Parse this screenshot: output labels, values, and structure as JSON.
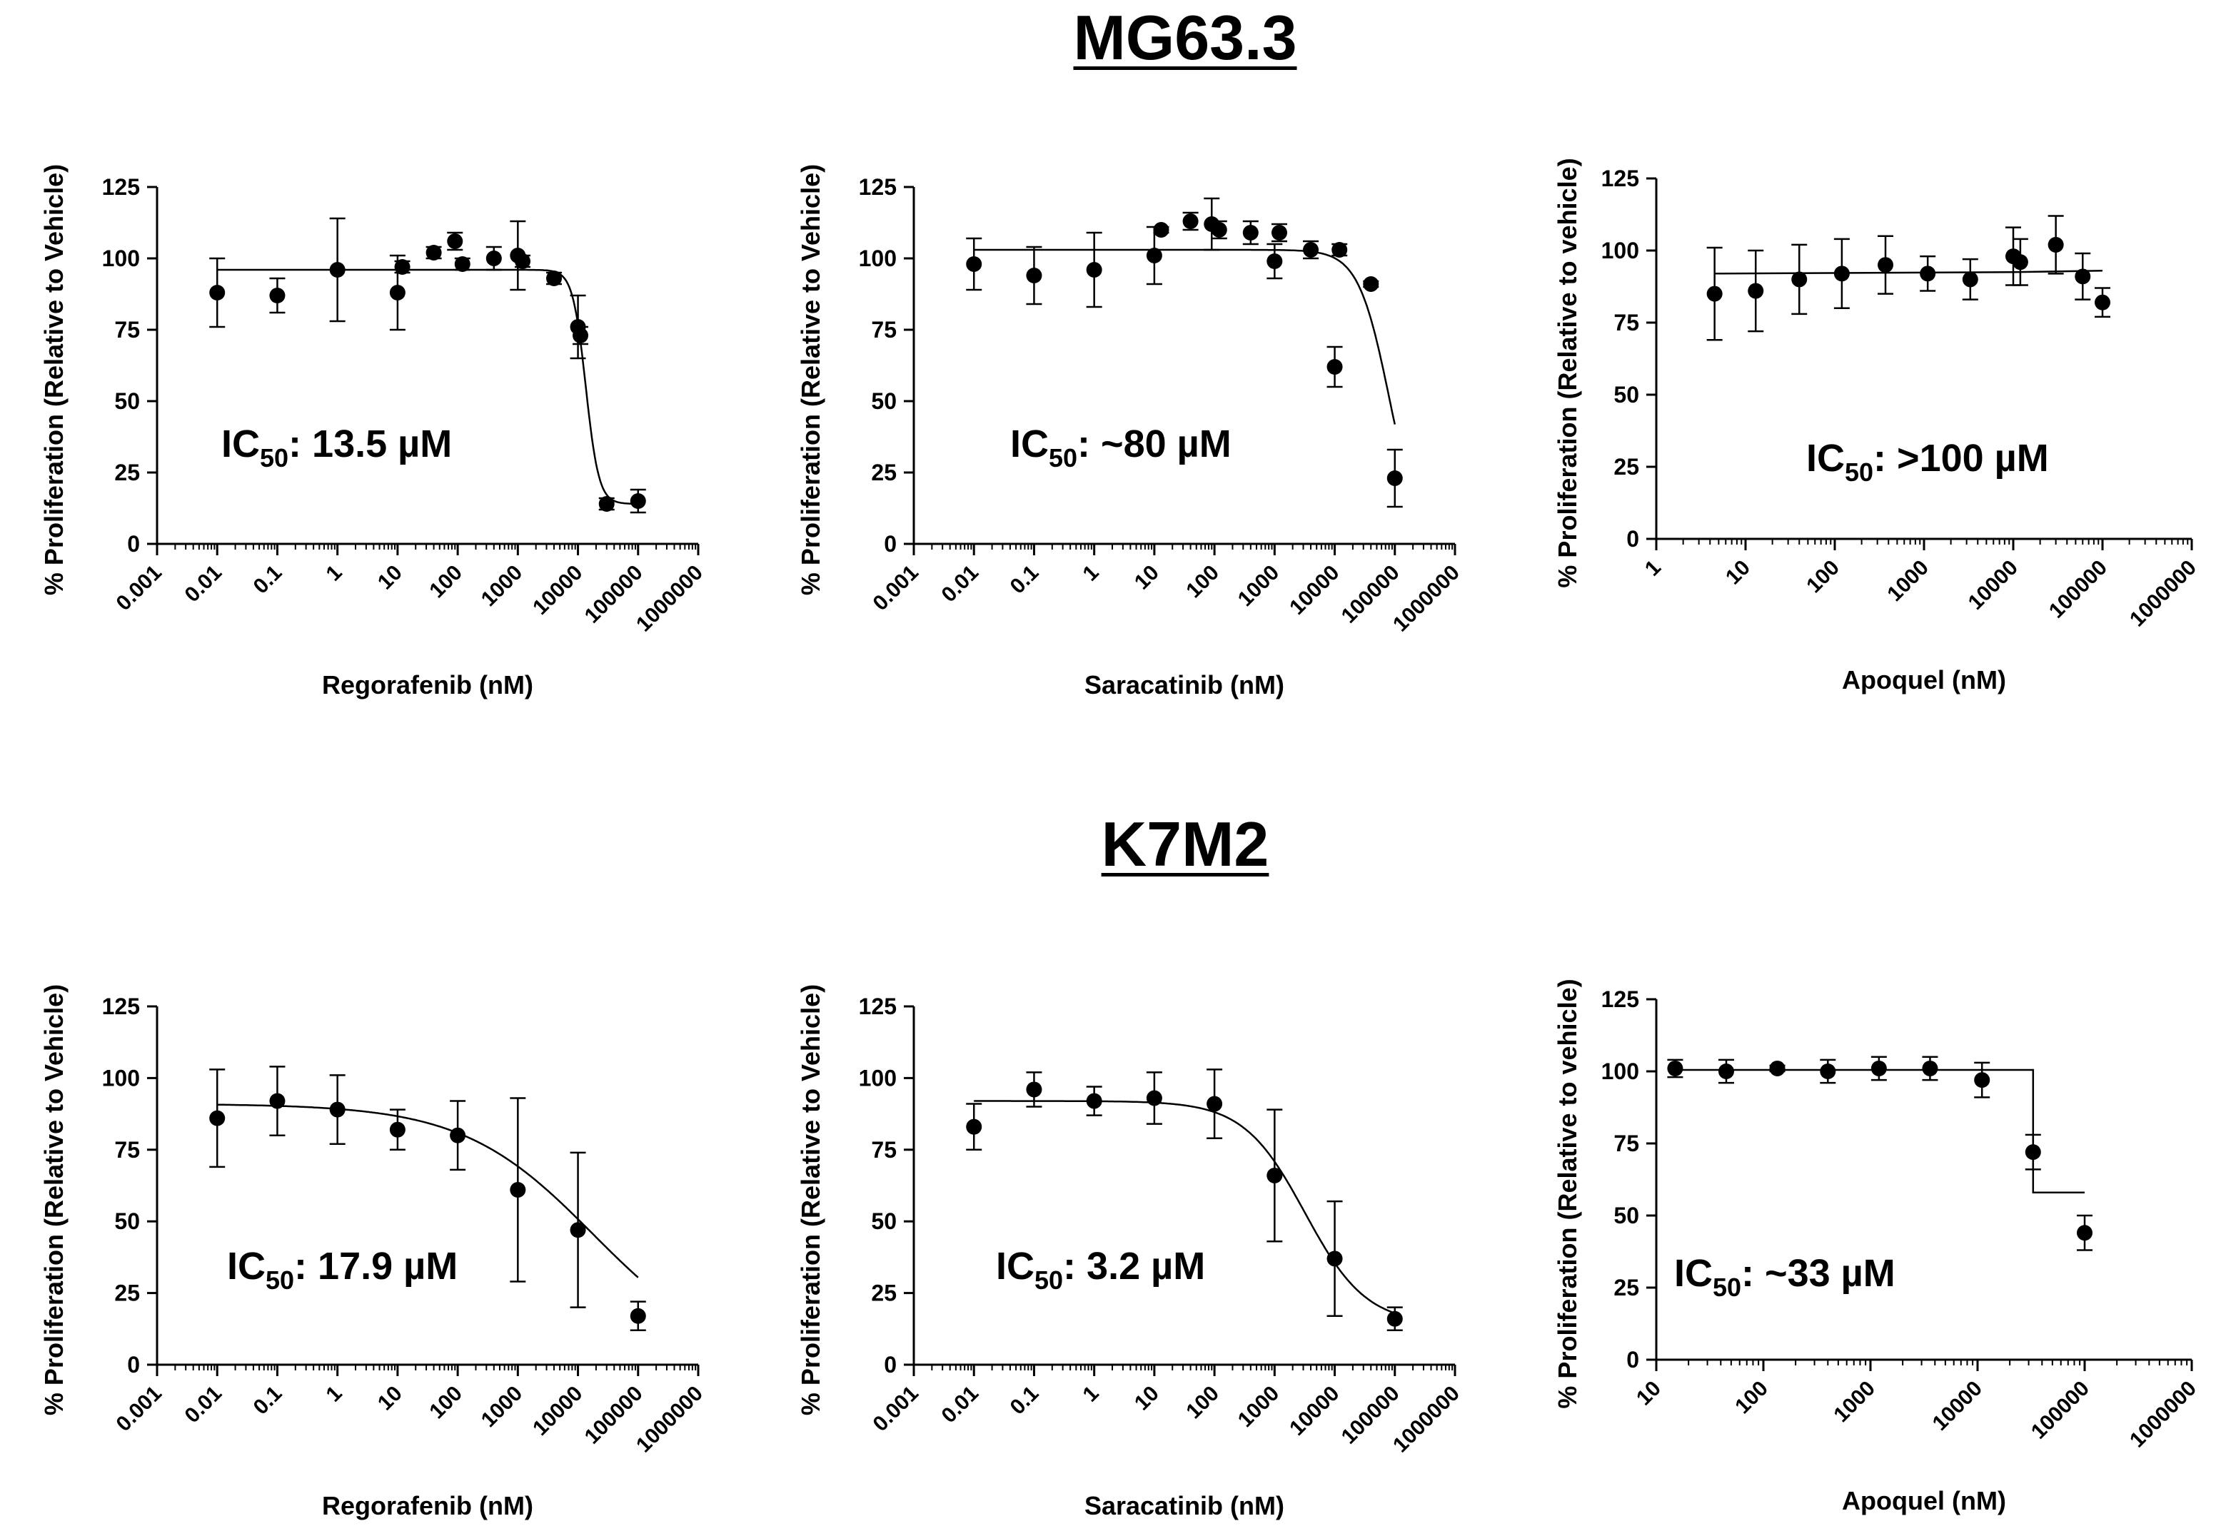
{
  "sections": [
    {
      "title": "MG63.3"
    },
    {
      "title": "K7M2"
    }
  ],
  "chart_data": [
    {
      "type": "scatter",
      "section": "MG63.3",
      "xlabel": "Regorafenib (nM)",
      "ylabel": "% Proliferation (Relative to Vehicle)",
      "xscale": "log",
      "xlim": [
        0.001,
        1000000
      ],
      "ylim": [
        0,
        125
      ],
      "xticks": [
        "0.001",
        "0.01",
        "0.1",
        "1",
        "10",
        "100",
        "1000",
        "10000",
        "100000",
        "1000000"
      ],
      "yticks": [
        "0",
        "25",
        "50",
        "75",
        "100",
        "125"
      ],
      "annotation": {
        "prefix": "IC",
        "sub": "50",
        "suffix": ": 13.5 µM"
      },
      "points": [
        {
          "x": 0.01,
          "y": 88,
          "err": 12
        },
        {
          "x": 0.1,
          "y": 87,
          "err": 6
        },
        {
          "x": 1,
          "y": 96,
          "err": 18
        },
        {
          "x": 10,
          "y": 88,
          "err": 13
        },
        {
          "x": 12,
          "y": 97,
          "err": 2
        },
        {
          "x": 40,
          "y": 102,
          "err": 2
        },
        {
          "x": 90,
          "y": 106,
          "err": 3
        },
        {
          "x": 120,
          "y": 98,
          "err": 2
        },
        {
          "x": 400,
          "y": 100,
          "err": 4
        },
        {
          "x": 1000,
          "y": 101,
          "err": 12
        },
        {
          "x": 1200,
          "y": 99,
          "err": 2
        },
        {
          "x": 4000,
          "y": 93,
          "err": 2
        },
        {
          "x": 10000,
          "y": 76,
          "err": 11
        },
        {
          "x": 11000,
          "y": 73,
          "err": 3
        },
        {
          "x": 30000,
          "y": 14,
          "err": 2
        },
        {
          "x": 100000,
          "y": 15,
          "err": 4
        }
      ],
      "fit": {
        "top": 96,
        "bottom": 14,
        "ic50": 13500,
        "hill": 4,
        "xmin": 0.01,
        "xmax": 100000
      }
    },
    {
      "type": "scatter",
      "section": "MG63.3",
      "xlabel": "Saracatinib (nM)",
      "ylabel": "% Proliferation (Relative to Vehicle)",
      "xscale": "log",
      "xlim": [
        0.001,
        1000000
      ],
      "ylim": [
        0,
        125
      ],
      "xticks": [
        "0.001",
        "0.01",
        "0.1",
        "1",
        "10",
        "100",
        "1000",
        "10000",
        "100000",
        "1000000"
      ],
      "yticks": [
        "0",
        "25",
        "50",
        "75",
        "100",
        "125"
      ],
      "annotation": {
        "prefix": "IC",
        "sub": "50",
        "suffix": ": ~80 µM"
      },
      "points": [
        {
          "x": 0.01,
          "y": 98,
          "err": 9
        },
        {
          "x": 0.1,
          "y": 94,
          "err": 10
        },
        {
          "x": 1,
          "y": 96,
          "err": 13
        },
        {
          "x": 10,
          "y": 101,
          "err": 10
        },
        {
          "x": 13,
          "y": 110,
          "err": 1
        },
        {
          "x": 40,
          "y": 113,
          "err": 3
        },
        {
          "x": 90,
          "y": 112,
          "err": 9
        },
        {
          "x": 120,
          "y": 110,
          "err": 3
        },
        {
          "x": 400,
          "y": 109,
          "err": 4
        },
        {
          "x": 1000,
          "y": 99,
          "err": 6
        },
        {
          "x": 1200,
          "y": 109,
          "err": 3
        },
        {
          "x": 4000,
          "y": 103,
          "err": 3
        },
        {
          "x": 10000,
          "y": 62,
          "err": 7
        },
        {
          "x": 12000,
          "y": 103,
          "err": 2
        },
        {
          "x": 40000,
          "y": 91,
          "err": 1
        },
        {
          "x": 100000,
          "y": 23,
          "err": 10
        }
      ],
      "fit": {
        "top": 103,
        "bottom": 0,
        "ic50": 80000,
        "hill": 1.7,
        "xmin": 0.01,
        "xmax": 100000
      }
    },
    {
      "type": "scatter",
      "section": "MG63.3",
      "xlabel": "Apoquel (nM)",
      "ylabel": "% Proliferation (Relative to vehicle)",
      "xscale": "log",
      "xlim": [
        1,
        1000000
      ],
      "ylim": [
        0,
        125
      ],
      "xticks": [
        "1",
        "10",
        "100",
        "1000",
        "10000",
        "100000",
        "1000000"
      ],
      "yticks": [
        "0",
        "25",
        "50",
        "75",
        "100",
        "125"
      ],
      "annotation": {
        "prefix": "IC",
        "sub": "50",
        "suffix": ": >100 µM"
      },
      "points": [
        {
          "x": 4.5,
          "y": 85,
          "err": 16
        },
        {
          "x": 13,
          "y": 86,
          "err": 14
        },
        {
          "x": 40,
          "y": 90,
          "err": 12
        },
        {
          "x": 120,
          "y": 92,
          "err": 12
        },
        {
          "x": 370,
          "y": 95,
          "err": 10
        },
        {
          "x": 1100,
          "y": 92,
          "err": 6
        },
        {
          "x": 3300,
          "y": 90,
          "err": 7
        },
        {
          "x": 10000,
          "y": 98,
          "err": 10
        },
        {
          "x": 12000,
          "y": 96,
          "err": 8
        },
        {
          "x": 30000,
          "y": 102,
          "err": 10
        },
        {
          "x": 60000,
          "y": 91,
          "err": 8
        },
        {
          "x": 100000,
          "y": 82,
          "err": 5
        }
      ],
      "fit": {
        "line": [
          [
            4.5,
            92
          ],
          [
            10000,
            92.5
          ],
          [
            100000,
            93
          ]
        ]
      }
    },
    {
      "type": "scatter",
      "section": "K7M2",
      "xlabel": "Regorafenib (nM)",
      "ylabel": "% Proliferation (Relative to Vehicle)",
      "xscale": "log",
      "xlim": [
        0.001,
        1000000
      ],
      "ylim": [
        0,
        125
      ],
      "xticks": [
        "0.001",
        "0.01",
        "0.1",
        "1",
        "10",
        "100",
        "1000",
        "10000",
        "100000",
        "1000000"
      ],
      "yticks": [
        "0",
        "25",
        "50",
        "75",
        "100",
        "125"
      ],
      "annotation": {
        "prefix": "IC",
        "sub": "50",
        "suffix": ": 17.9 µM"
      },
      "points": [
        {
          "x": 0.01,
          "y": 86,
          "err": 17
        },
        {
          "x": 0.1,
          "y": 92,
          "err": 12
        },
        {
          "x": 1,
          "y": 89,
          "err": 12
        },
        {
          "x": 10,
          "y": 82,
          "err": 7
        },
        {
          "x": 100,
          "y": 80,
          "err": 12
        },
        {
          "x": 1000,
          "y": 61,
          "err": 32
        },
        {
          "x": 10000,
          "y": 47,
          "err": 27
        },
        {
          "x": 100000,
          "y": 17,
          "err": 5
        }
      ],
      "fit": {
        "top": 91,
        "bottom": 0,
        "ic50": 17900,
        "hill": 0.4,
        "xmin": 0.01,
        "xmax": 100000
      }
    },
    {
      "type": "scatter",
      "section": "K7M2",
      "xlabel": "Saracatinib (nM)",
      "ylabel": "% Proliferation (Relative to Vehicle)",
      "xscale": "log",
      "xlim": [
        0.001,
        1000000
      ],
      "ylim": [
        0,
        125
      ],
      "xticks": [
        "0.001",
        "0.01",
        "0.1",
        "1",
        "10",
        "100",
        "1000",
        "10000",
        "100000",
        "1000000"
      ],
      "yticks": [
        "0",
        "25",
        "50",
        "75",
        "100",
        "125"
      ],
      "annotation": {
        "prefix": "IC",
        "sub": "50",
        "suffix": ": 3.2 µM"
      },
      "points": [
        {
          "x": 0.01,
          "y": 83,
          "err": 8
        },
        {
          "x": 0.1,
          "y": 96,
          "err": 6
        },
        {
          "x": 1,
          "y": 92,
          "err": 5
        },
        {
          "x": 10,
          "y": 93,
          "err": 9
        },
        {
          "x": 100,
          "y": 91,
          "err": 12
        },
        {
          "x": 1000,
          "y": 66,
          "err": 23
        },
        {
          "x": 10000,
          "y": 37,
          "err": 20
        },
        {
          "x": 100000,
          "y": 16,
          "err": 4
        }
      ],
      "fit": {
        "top": 92,
        "bottom": 14,
        "ic50": 3200,
        "hill": 0.85,
        "xmin": 0.01,
        "xmax": 100000
      }
    },
    {
      "type": "scatter",
      "section": "K7M2",
      "xlabel": "Apoquel (nM)",
      "ylabel": "% Proliferation (Relative to vehicle)",
      "xscale": "log",
      "xlim": [
        10,
        1000000
      ],
      "ylim": [
        0,
        125
      ],
      "xticks": [
        "10",
        "100",
        "1000",
        "10000",
        "100000",
        "1000000"
      ],
      "yticks": [
        "0",
        "25",
        "50",
        "75",
        "100",
        "125"
      ],
      "annotation": {
        "prefix": "IC",
        "sub": "50",
        "suffix": ": ~33 µM"
      },
      "points": [
        {
          "x": 15,
          "y": 101,
          "err": 3
        },
        {
          "x": 45,
          "y": 100,
          "err": 4
        },
        {
          "x": 135,
          "y": 101,
          "err": 1
        },
        {
          "x": 400,
          "y": 100,
          "err": 4
        },
        {
          "x": 1200,
          "y": 101,
          "err": 4
        },
        {
          "x": 3600,
          "y": 101,
          "err": 4
        },
        {
          "x": 11000,
          "y": 97,
          "err": 6
        },
        {
          "x": 33000,
          "y": 72,
          "err": 6
        },
        {
          "x": 100000,
          "y": 44,
          "err": 6
        }
      ],
      "fit": {
        "line": [
          [
            15,
            100.5
          ],
          [
            33000,
            100.5
          ],
          [
            33000,
            58
          ],
          [
            100000,
            58
          ]
        ]
      }
    }
  ]
}
